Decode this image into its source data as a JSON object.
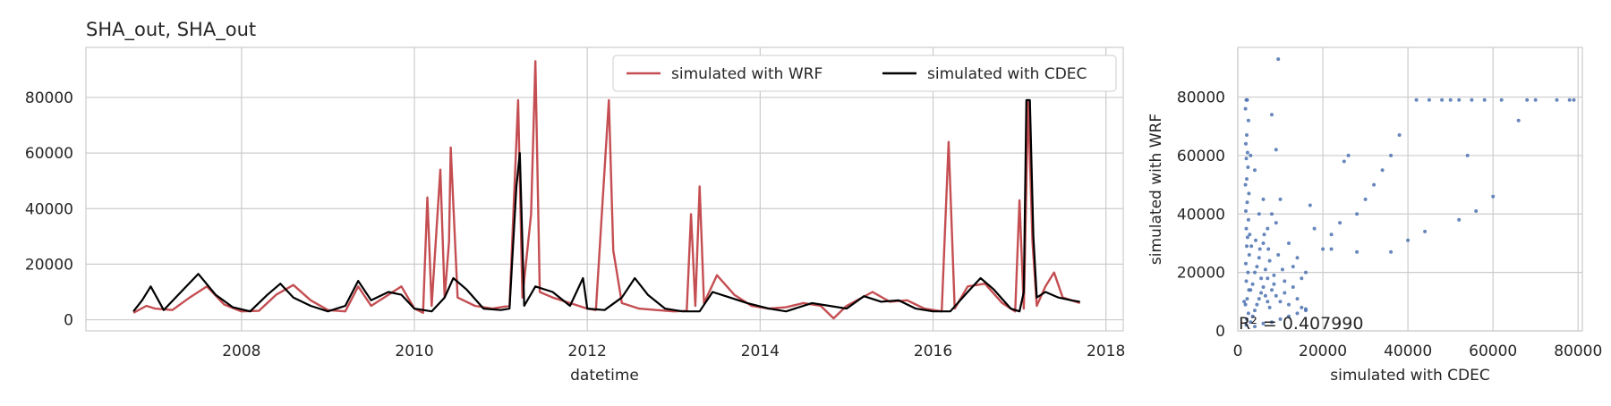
{
  "figure_title": "SHA_out, SHA_out",
  "chart_data": [
    {
      "type": "line",
      "title": "SHA_out, SHA_out",
      "xlabel": "datetime",
      "ylabel": "",
      "xlim": [
        2006.2,
        2018.2
      ],
      "ylim": [
        -4000,
        98000
      ],
      "xticks": [
        2008,
        2010,
        2012,
        2014,
        2016,
        2018
      ],
      "yticks": [
        0,
        20000,
        40000,
        60000,
        80000
      ],
      "grid": true,
      "legend": "top-right",
      "series": [
        {
          "name": "simulated with WRF",
          "color": "#c44e52",
          "points": [
            [
              2006.75,
              2500
            ],
            [
              2006.9,
              5000
            ],
            [
              2007.0,
              4000
            ],
            [
              2007.2,
              3500
            ],
            [
              2007.4,
              8000
            ],
            [
              2007.6,
              12000
            ],
            [
              2007.8,
              5500
            ],
            [
              2008.0,
              3000
            ],
            [
              2008.2,
              3200
            ],
            [
              2008.4,
              9000
            ],
            [
              2008.6,
              12500
            ],
            [
              2008.8,
              7000
            ],
            [
              2009.0,
              3500
            ],
            [
              2009.2,
              3000
            ],
            [
              2009.35,
              12000
            ],
            [
              2009.5,
              5000
            ],
            [
              2009.7,
              9000
            ],
            [
              2009.85,
              12000
            ],
            [
              2010.0,
              4000
            ],
            [
              2010.1,
              2500
            ],
            [
              2010.15,
              44000
            ],
            [
              2010.2,
              5000
            ],
            [
              2010.3,
              54000
            ],
            [
              2010.35,
              8000
            ],
            [
              2010.4,
              28000
            ],
            [
              2010.42,
              62000
            ],
            [
              2010.5,
              8000
            ],
            [
              2010.7,
              5000
            ],
            [
              2010.9,
              4000
            ],
            [
              2011.1,
              5000
            ],
            [
              2011.2,
              79000
            ],
            [
              2011.25,
              8000
            ],
            [
              2011.35,
              38000
            ],
            [
              2011.4,
              93000
            ],
            [
              2011.45,
              10000
            ],
            [
              2011.6,
              8000
            ],
            [
              2011.8,
              6000
            ],
            [
              2012.0,
              4000
            ],
            [
              2012.1,
              3500
            ],
            [
              2012.25,
              79000
            ],
            [
              2012.3,
              25000
            ],
            [
              2012.4,
              6000
            ],
            [
              2012.6,
              4000
            ],
            [
              2012.8,
              3500
            ],
            [
              2013.0,
              3000
            ],
            [
              2013.15,
              3200
            ],
            [
              2013.2,
              38000
            ],
            [
              2013.25,
              5000
            ],
            [
              2013.3,
              48000
            ],
            [
              2013.35,
              6000
            ],
            [
              2013.5,
              16000
            ],
            [
              2013.7,
              9000
            ],
            [
              2013.9,
              5000
            ],
            [
              2014.1,
              4000
            ],
            [
              2014.3,
              4500
            ],
            [
              2014.5,
              6000
            ],
            [
              2014.7,
              5000
            ],
            [
              2014.85,
              500
            ],
            [
              2015.0,
              5000
            ],
            [
              2015.3,
              10000
            ],
            [
              2015.5,
              6500
            ],
            [
              2015.7,
              7000
            ],
            [
              2015.9,
              4000
            ],
            [
              2016.1,
              3000
            ],
            [
              2016.18,
              64000
            ],
            [
              2016.25,
              4000
            ],
            [
              2016.4,
              12000
            ],
            [
              2016.6,
              13000
            ],
            [
              2016.8,
              6000
            ],
            [
              2016.95,
              3000
            ],
            [
              2017.0,
              43000
            ],
            [
              2017.05,
              4000
            ],
            [
              2017.1,
              79000
            ],
            [
              2017.15,
              28000
            ],
            [
              2017.2,
              5000
            ],
            [
              2017.3,
              12000
            ],
            [
              2017.4,
              17000
            ],
            [
              2017.5,
              8000
            ],
            [
              2017.7,
              6000
            ]
          ]
        },
        {
          "name": "simulated with CDEC",
          "color": "#000000",
          "points": [
            [
              2006.75,
              3000
            ],
            [
              2006.85,
              7000
            ],
            [
              2006.95,
              12000
            ],
            [
              2007.1,
              3500
            ],
            [
              2007.3,
              10000
            ],
            [
              2007.5,
              16500
            ],
            [
              2007.7,
              9000
            ],
            [
              2007.9,
              4500
            ],
            [
              2008.1,
              3000
            ],
            [
              2008.3,
              9000
            ],
            [
              2008.45,
              13000
            ],
            [
              2008.6,
              8000
            ],
            [
              2008.8,
              5000
            ],
            [
              2009.0,
              3000
            ],
            [
              2009.2,
              5000
            ],
            [
              2009.35,
              14000
            ],
            [
              2009.5,
              7000
            ],
            [
              2009.7,
              10000
            ],
            [
              2009.85,
              9000
            ],
            [
              2010.0,
              4000
            ],
            [
              2010.2,
              3000
            ],
            [
              2010.35,
              8000
            ],
            [
              2010.45,
              15000
            ],
            [
              2010.6,
              11000
            ],
            [
              2010.8,
              4000
            ],
            [
              2011.0,
              3500
            ],
            [
              2011.1,
              4000
            ],
            [
              2011.18,
              48000
            ],
            [
              2011.22,
              60000
            ],
            [
              2011.27,
              5000
            ],
            [
              2011.4,
              12000
            ],
            [
              2011.6,
              10000
            ],
            [
              2011.8,
              5000
            ],
            [
              2011.95,
              15000
            ],
            [
              2012.0,
              4000
            ],
            [
              2012.2,
              3500
            ],
            [
              2012.4,
              8000
            ],
            [
              2012.55,
              15000
            ],
            [
              2012.7,
              9000
            ],
            [
              2012.9,
              4000
            ],
            [
              2013.1,
              3000
            ],
            [
              2013.3,
              3000
            ],
            [
              2013.45,
              10000
            ],
            [
              2013.65,
              8000
            ],
            [
              2013.85,
              6000
            ],
            [
              2014.1,
              4000
            ],
            [
              2014.3,
              3000
            ],
            [
              2014.6,
              6000
            ],
            [
              2014.8,
              5000
            ],
            [
              2015.0,
              4000
            ],
            [
              2015.2,
              8500
            ],
            [
              2015.4,
              6500
            ],
            [
              2015.6,
              7000
            ],
            [
              2015.8,
              4000
            ],
            [
              2016.0,
              3000
            ],
            [
              2016.2,
              3000
            ],
            [
              2016.4,
              10000
            ],
            [
              2016.55,
              15000
            ],
            [
              2016.7,
              11000
            ],
            [
              2016.9,
              4000
            ],
            [
              2017.0,
              3000
            ],
            [
              2017.05,
              10000
            ],
            [
              2017.08,
              79000
            ],
            [
              2017.12,
              79000
            ],
            [
              2017.16,
              30000
            ],
            [
              2017.2,
              8000
            ],
            [
              2017.3,
              10000
            ],
            [
              2017.45,
              8000
            ],
            [
              2017.6,
              7000
            ],
            [
              2017.7,
              6500
            ]
          ]
        }
      ]
    },
    {
      "type": "scatter",
      "title": "",
      "xlabel": "simulated with CDEC",
      "ylabel": "simulated with WRF",
      "xlim": [
        0,
        81000
      ],
      "ylim": [
        0,
        97000
      ],
      "xticks": [
        0,
        20000,
        40000,
        60000,
        80000
      ],
      "yticks": [
        0,
        20000,
        40000,
        60000,
        80000
      ],
      "grid": true,
      "color": "#4c72b0",
      "annotation": "R² = 0.407990",
      "points": [
        [
          2000,
          79000
        ],
        [
          2200,
          79000
        ],
        [
          1800,
          76000
        ],
        [
          2500,
          72000
        ],
        [
          2100,
          67000
        ],
        [
          1900,
          64000
        ],
        [
          2300,
          61000
        ],
        [
          2000,
          59000
        ],
        [
          2400,
          56000
        ],
        [
          2100,
          52000
        ],
        [
          1800,
          50000
        ],
        [
          2600,
          47000
        ],
        [
          2200,
          44000
        ],
        [
          1900,
          41000
        ],
        [
          2500,
          38000
        ],
        [
          2000,
          35000
        ],
        [
          2300,
          32000
        ],
        [
          2100,
          29000
        ],
        [
          2700,
          26000
        ],
        [
          1900,
          23000
        ],
        [
          2400,
          20000
        ],
        [
          2000,
          17000
        ],
        [
          2600,
          14000
        ],
        [
          2200,
          11000
        ],
        [
          1800,
          9000
        ],
        [
          2500,
          6000
        ],
        [
          2100,
          4000
        ],
        [
          3000,
          3000
        ],
        [
          3500,
          5000
        ],
        [
          4000,
          7000
        ],
        [
          4500,
          9000
        ],
        [
          5000,
          11000
        ],
        [
          5500,
          13000
        ],
        [
          6000,
          15000
        ],
        [
          6500,
          12000
        ],
        [
          7000,
          10000
        ],
        [
          7500,
          8000
        ],
        [
          8000,
          14000
        ],
        [
          8500,
          16000
        ],
        [
          9000,
          12000
        ],
        [
          10000,
          10000
        ],
        [
          11000,
          13000
        ],
        [
          12000,
          9000
        ],
        [
          13000,
          15000
        ],
        [
          14000,
          11000
        ],
        [
          15000,
          8000
        ],
        [
          16000,
          7000
        ],
        [
          4000,
          20000
        ],
        [
          5000,
          25000
        ],
        [
          6000,
          30000
        ],
        [
          7000,
          35000
        ],
        [
          8000,
          40000
        ],
        [
          9000,
          37000
        ],
        [
          10000,
          45000
        ],
        [
          5000,
          40000
        ],
        [
          6000,
          45000
        ],
        [
          4000,
          55000
        ],
        [
          3000,
          60000
        ],
        [
          8000,
          74000
        ],
        [
          9500,
          93000
        ],
        [
          9000,
          62000
        ],
        [
          12000,
          30000
        ],
        [
          14000,
          25000
        ],
        [
          16000,
          20000
        ],
        [
          17000,
          43000
        ],
        [
          18000,
          35000
        ],
        [
          20000,
          28000
        ],
        [
          22000,
          33000
        ],
        [
          24000,
          37000
        ],
        [
          25000,
          58000
        ],
        [
          26000,
          60000
        ],
        [
          28000,
          40000
        ],
        [
          30000,
          45000
        ],
        [
          32000,
          50000
        ],
        [
          34000,
          55000
        ],
        [
          36000,
          60000
        ],
        [
          38000,
          67000
        ],
        [
          40000,
          31000
        ],
        [
          42000,
          79000
        ],
        [
          45000,
          79000
        ],
        [
          48000,
          79000
        ],
        [
          50000,
          79000
        ],
        [
          52000,
          79000
        ],
        [
          55000,
          79000
        ],
        [
          56000,
          41000
        ],
        [
          58000,
          79000
        ],
        [
          60000,
          46000
        ],
        [
          62000,
          79000
        ],
        [
          66000,
          72000
        ],
        [
          68000,
          79000
        ],
        [
          70000,
          79000
        ],
        [
          75000,
          79000
        ],
        [
          79000,
          79000
        ],
        [
          78000,
          79000
        ],
        [
          44000,
          34000
        ],
        [
          52000,
          38000
        ],
        [
          54000,
          60000
        ],
        [
          36000,
          27000
        ],
        [
          28000,
          27000
        ],
        [
          22000,
          28000
        ],
        [
          15000,
          18000
        ],
        [
          13000,
          22000
        ],
        [
          11000,
          17000
        ],
        [
          7000,
          18000
        ],
        [
          3000,
          14000
        ],
        [
          1500,
          10000
        ],
        [
          2000,
          2000
        ],
        [
          4000,
          1500
        ],
        [
          6000,
          2500
        ],
        [
          8000,
          3000
        ],
        [
          10000,
          4000
        ],
        [
          12000,
          5000
        ],
        [
          14000,
          6000
        ],
        [
          16000,
          7500
        ],
        [
          3500,
          16000
        ],
        [
          4500,
          22000
        ],
        [
          5500,
          18000
        ],
        [
          6500,
          21000
        ],
        [
          7500,
          24000
        ],
        [
          8500,
          19000
        ],
        [
          9500,
          26000
        ],
        [
          10500,
          21000
        ],
        [
          3200,
          29000
        ],
        [
          2800,
          33000
        ],
        [
          4200,
          31000
        ],
        [
          5200,
          28000
        ],
        [
          6200,
          33000
        ],
        [
          7200,
          28000
        ]
      ]
    }
  ]
}
